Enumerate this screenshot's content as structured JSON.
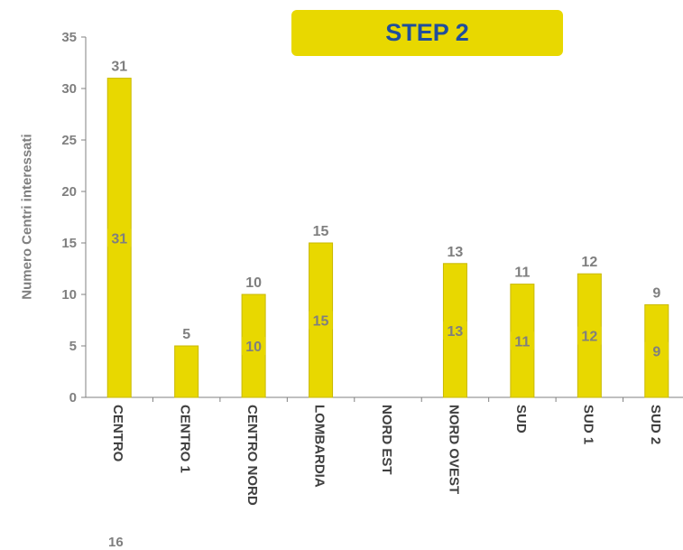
{
  "banner": {
    "label": "STEP 2"
  },
  "stray_label": "16",
  "colors": {
    "bar": "#e8d800",
    "bar_edge": "#c9b900",
    "text": "#7f7f7f",
    "axis": "#808080",
    "banner_text": "#1f4e9c"
  },
  "chart_data": {
    "type": "bar",
    "title": "",
    "xlabel": "",
    "ylabel": "Numero Centri interessati",
    "ylim": [
      0,
      35
    ],
    "yticks": [
      0,
      5,
      10,
      15,
      20,
      25,
      30,
      35
    ],
    "grid": false,
    "categories": [
      "CENTRO",
      "CENTRO 1",
      "CENTRO NORD",
      "LOMBARDIA",
      "NORD EST",
      "NORD OVEST",
      "SUD",
      "SUD 1",
      "SUD 2"
    ],
    "values": [
      31,
      5,
      10,
      15,
      0,
      13,
      11,
      12,
      9
    ],
    "top_labels": [
      "31",
      "5",
      "10",
      "15",
      "",
      "13",
      "11",
      "12",
      "9"
    ],
    "inner_labels": [
      "31",
      "",
      "10",
      "15",
      "",
      "13",
      "11",
      "12",
      "9"
    ]
  }
}
